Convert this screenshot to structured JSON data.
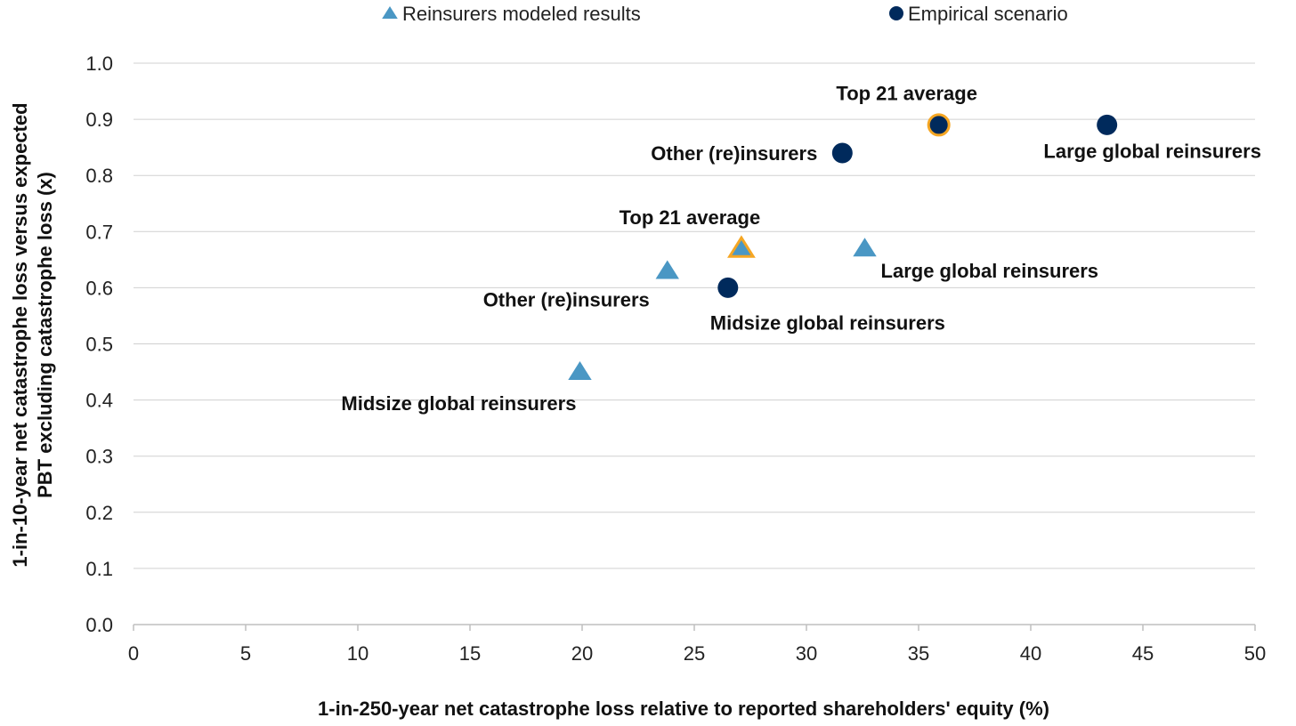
{
  "chart_data": {
    "type": "scatter",
    "xlabel": "1-in-250-year net catastrophe loss relative to reported shareholders' equity (%)",
    "ylabel_lines": [
      "1-in-10-year net catastrophe loss versus expected",
      "PBT excluding catastrophe loss (x)"
    ],
    "xlim": [
      0,
      50
    ],
    "ylim": [
      0,
      1.0
    ],
    "x_ticks": [
      "0",
      "5",
      "10",
      "15",
      "20",
      "25",
      "30",
      "35",
      "40",
      "45",
      "50"
    ],
    "y_ticks": [
      "0.0",
      "0.1",
      "0.2",
      "0.3",
      "0.4",
      "0.5",
      "0.6",
      "0.7",
      "0.8",
      "0.9",
      "1.0"
    ],
    "grid": "horizontal",
    "legend_position": "top",
    "series": [
      {
        "name": "Reinsurers modeled results",
        "marker": "triangle",
        "color": "#4a97c4",
        "points": [
          {
            "label": "Midsize global reinsurers",
            "x": 19.9,
            "y": 0.45,
            "highlight": false
          },
          {
            "label": "Other (re)insurers",
            "x": 23.8,
            "y": 0.63,
            "highlight": false
          },
          {
            "label": "Top 21 average",
            "x": 27.1,
            "y": 0.67,
            "highlight": true
          },
          {
            "label": "Large global reinsurers",
            "x": 32.6,
            "y": 0.67,
            "highlight": false
          }
        ]
      },
      {
        "name": "Empirical scenario",
        "marker": "circle",
        "color": "#002a5c",
        "points": [
          {
            "label": "Midsize global reinsurers",
            "x": 26.5,
            "y": 0.6,
            "highlight": false
          },
          {
            "label": "Other (re)insurers",
            "x": 31.6,
            "y": 0.84,
            "highlight": false
          },
          {
            "label": "Top 21 average",
            "x": 35.9,
            "y": 0.89,
            "highlight": true
          },
          {
            "label": "Large global reinsurers",
            "x": 43.4,
            "y": 0.89,
            "highlight": false
          }
        ]
      }
    ],
    "highlight_color": "#f5a623"
  }
}
